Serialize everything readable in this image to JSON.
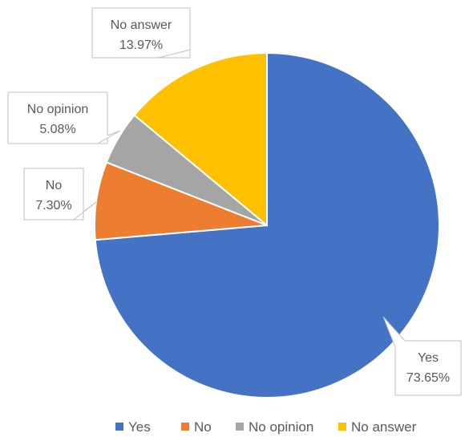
{
  "chart_data": {
    "type": "pie",
    "title": "",
    "start_angle_deg": 0,
    "direction": "clockwise",
    "slices": [
      {
        "label": "Yes",
        "value": 73.65,
        "value_label": "73.65%",
        "color": "#4472C4"
      },
      {
        "label": "No",
        "value": 7.3,
        "value_label": "7.30%",
        "color": "#ED7D31"
      },
      {
        "label": "No opinion",
        "value": 5.08,
        "value_label": "5.08%",
        "color": "#A5A5A5"
      },
      {
        "label": "No answer",
        "value": 13.97,
        "value_label": "13.97%",
        "color": "#FFC000"
      }
    ],
    "legend": {
      "position": "bottom",
      "entries": [
        "Yes",
        "No",
        "No opinion",
        "No answer"
      ]
    }
  }
}
